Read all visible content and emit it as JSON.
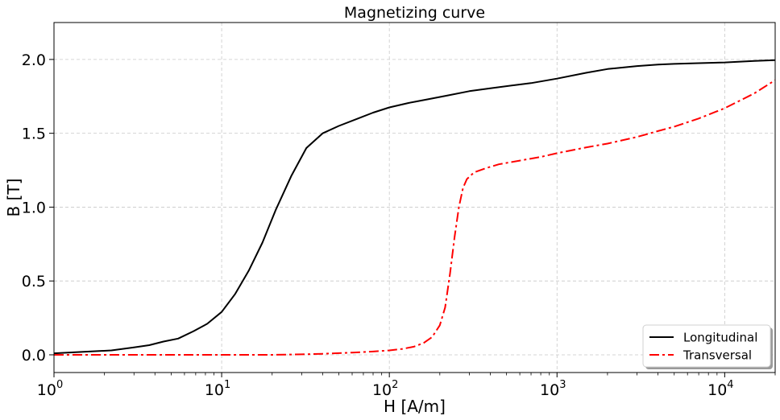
{
  "chart_data": {
    "type": "line",
    "title": "Magnetizing curve",
    "xlabel": "H [A/m]",
    "ylabel": "B [T]",
    "xscale": "log",
    "xlim": [
      1,
      20000
    ],
    "ylim": [
      -0.12,
      2.25
    ],
    "xticks": [
      {
        "value": 1,
        "base": "10",
        "exp": "0"
      },
      {
        "value": 10,
        "base": "10",
        "exp": "1"
      },
      {
        "value": 100,
        "base": "10",
        "exp": "2"
      },
      {
        "value": 1000,
        "base": "10",
        "exp": "3"
      },
      {
        "value": 10000,
        "base": "10",
        "exp": "4"
      }
    ],
    "yticks": [
      {
        "value": 0.0,
        "label": "0.0"
      },
      {
        "value": 0.5,
        "label": "0.5"
      },
      {
        "value": 1.0,
        "label": "1.0"
      },
      {
        "value": 1.5,
        "label": "1.5"
      },
      {
        "value": 2.0,
        "label": "2.0"
      }
    ],
    "grid": true,
    "legend_position": "bottom-right",
    "series": [
      {
        "name": "Longitudinal",
        "color": "#000000",
        "style": "solid",
        "x": [
          1,
          1.5,
          2.2,
          3,
          3.7,
          4.5,
          5.5,
          6.8,
          8.2,
          10,
          12,
          14.5,
          17.5,
          21,
          26,
          32,
          40,
          50,
          65,
          80,
          100,
          130,
          170,
          220,
          300,
          400,
          550,
          700,
          1000,
          1500,
          2000,
          3000,
          4000,
          5000,
          7000,
          10000,
          15000,
          20000
        ],
        "y": [
          0.01,
          0.02,
          0.03,
          0.05,
          0.065,
          0.09,
          0.11,
          0.16,
          0.21,
          0.29,
          0.41,
          0.57,
          0.76,
          0.98,
          1.21,
          1.4,
          1.5,
          1.55,
          1.6,
          1.64,
          1.675,
          1.705,
          1.73,
          1.755,
          1.785,
          1.805,
          1.825,
          1.84,
          1.87,
          1.91,
          1.935,
          1.955,
          1.965,
          1.97,
          1.975,
          1.98,
          1.99,
          1.995
        ]
      },
      {
        "name": "Transversal",
        "color": "#ff0000",
        "style": "dashdot",
        "x": [
          1,
          2,
          5,
          10,
          20,
          30,
          40,
          60,
          80,
          100,
          120,
          140,
          160,
          180,
          200,
          215,
          230,
          245,
          260,
          275,
          290,
          320,
          380,
          450,
          600,
          800,
          1000,
          1500,
          2000,
          3000,
          4000,
          5000,
          7000,
          10000,
          15000,
          20000
        ],
        "y": [
          0.0,
          0.0,
          0.0,
          0.0,
          0.0,
          0.003,
          0.007,
          0.015,
          0.022,
          0.03,
          0.04,
          0.055,
          0.08,
          0.12,
          0.2,
          0.32,
          0.55,
          0.8,
          1.0,
          1.13,
          1.19,
          1.235,
          1.265,
          1.29,
          1.315,
          1.34,
          1.365,
          1.405,
          1.43,
          1.475,
          1.515,
          1.545,
          1.6,
          1.67,
          1.77,
          1.86
        ]
      }
    ]
  }
}
